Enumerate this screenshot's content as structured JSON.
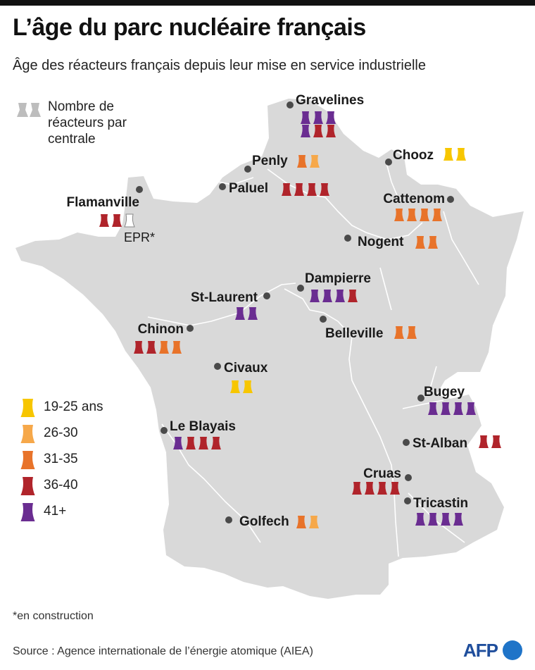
{
  "title": "L’âge du parc nucléaire français",
  "subtitle": "Âge des réacteurs français depuis leur mise en service industrielle",
  "legend_count_text": "Nombre de réacteurs par centrale",
  "legend_age": [
    {
      "key": "a",
      "label": "19-25 ans",
      "color": "#f7c600"
    },
    {
      "key": "b",
      "label": "26-30",
      "color": "#f6a84a"
    },
    {
      "key": "c",
      "label": "31-35",
      "color": "#e8732a"
    },
    {
      "key": "d",
      "label": "36-40",
      "color": "#b0242b"
    },
    {
      "key": "e",
      "label": "41+",
      "color": "#6a2d91"
    }
  ],
  "plants": [
    {
      "name": "Gravelines",
      "reactors": [
        "e",
        "e",
        "e",
        "e",
        "d",
        "d"
      ]
    },
    {
      "name": "Chooz",
      "reactors": [
        "a",
        "a"
      ]
    },
    {
      "name": "Penly",
      "reactors": [
        "c",
        "b"
      ]
    },
    {
      "name": "Paluel",
      "reactors": [
        "d",
        "d",
        "d",
        "d"
      ]
    },
    {
      "name": "Flamanville",
      "reactors": [
        "d",
        "d",
        "construction"
      ],
      "note": "EPR*"
    },
    {
      "name": "Cattenom",
      "reactors": [
        "c",
        "c",
        "c",
        "c"
      ]
    },
    {
      "name": "Nogent",
      "reactors": [
        "c",
        "c"
      ]
    },
    {
      "name": "Dampierre",
      "reactors": [
        "e",
        "e",
        "e",
        "d"
      ]
    },
    {
      "name": "St-Laurent",
      "reactors": [
        "e",
        "e"
      ]
    },
    {
      "name": "Chinon",
      "reactors": [
        "d",
        "d",
        "c",
        "c"
      ]
    },
    {
      "name": "Belleville",
      "reactors": [
        "c",
        "c"
      ]
    },
    {
      "name": "Civaux",
      "reactors": [
        "a",
        "a"
      ]
    },
    {
      "name": "Bugey",
      "reactors": [
        "e",
        "e",
        "e",
        "e"
      ]
    },
    {
      "name": "Le Blayais",
      "reactors": [
        "e",
        "d",
        "d",
        "d"
      ]
    },
    {
      "name": "St-Alban",
      "reactors": [
        "d",
        "d"
      ]
    },
    {
      "name": "Cruas",
      "reactors": [
        "d",
        "d",
        "d",
        "d"
      ]
    },
    {
      "name": "Tricastin",
      "reactors": [
        "e",
        "e",
        "e",
        "e"
      ]
    },
    {
      "name": "Golfech",
      "reactors": [
        "c",
        "b"
      ]
    }
  ],
  "footnote": "*en construction",
  "source": "Source : Agence internationale de l’énergie atomique (AIEA)",
  "logo_text": "AFP"
}
